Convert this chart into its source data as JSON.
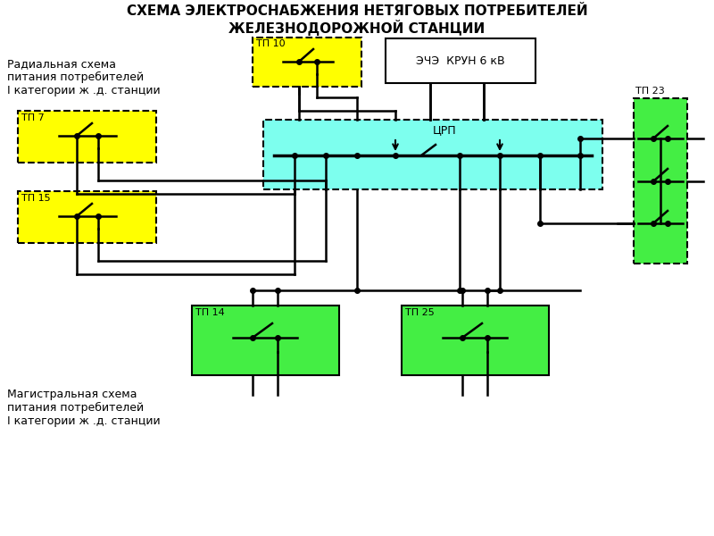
{
  "title_line1": "СХЕМА ЭЛЕКТРОСНАБЖЕНИЯ НЕТЯГОВЫХ ПОТРЕБИТЕЛЕЙ",
  "title_line2": "ЖЕЛЕЗНОДОРОЖНОЙ СТАНЦИИ",
  "bg_color": "#ffffff",
  "label_radial": "Радиальная схема\nпитания потребителей\nI категории ж .д. станции",
  "label_magistral": "Магистральная схема\nпитания потребителей\nI категории ж .д. станции",
  "tp10_label": "ТП 10",
  "tp7_label": "ТП 7",
  "tp15_label": "ТП 15",
  "tp23_label": "ТП 23",
  "tp14_label": "ТП 14",
  "tp25_label": "ТП 25",
  "crp_label": "ЦРП",
  "ech_label": "ЭЧЭ  КРУН 6 кВ",
  "yellow_fill": "#ffff00",
  "cyan_fill": "#7dffee",
  "green_fill": "#44ee44",
  "line_color": "#000000",
  "lw": 1.8,
  "lw_bus": 2.5
}
